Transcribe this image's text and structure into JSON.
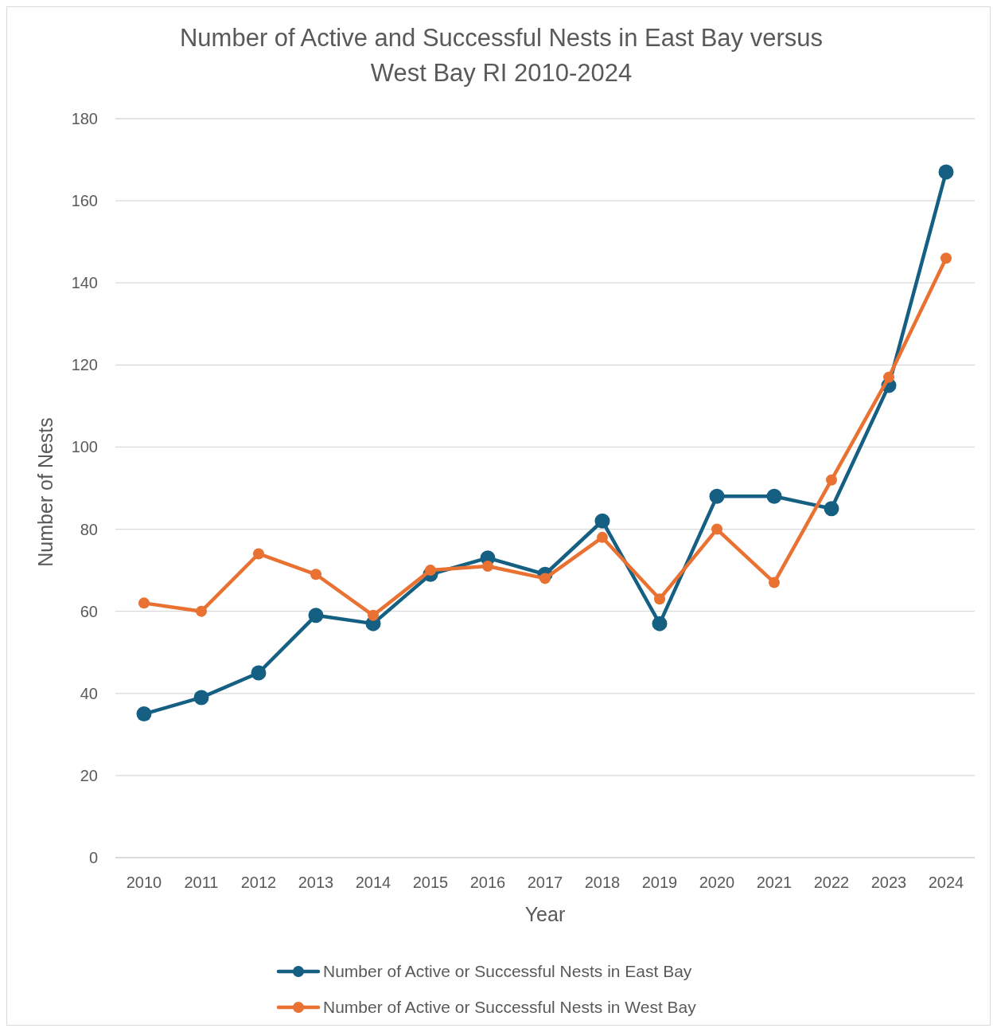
{
  "chart_data": {
    "type": "line",
    "title": "Number of Active and Successful Nests in East Bay versus West Bay RI 2010-2024",
    "xlabel": "Year",
    "ylabel": "Number  of Nests",
    "categories": [
      "2010",
      "2011",
      "2012",
      "2013",
      "2014",
      "2015",
      "2016",
      "2017",
      "2018",
      "2019",
      "2020",
      "2021",
      "2022",
      "2023",
      "2024"
    ],
    "series": [
      {
        "name": "Number of Active or Successful Nests in East Bay",
        "color": "#156082",
        "values": [
          35,
          39,
          45,
          59,
          57,
          69,
          73,
          69,
          82,
          57,
          88,
          88,
          85,
          115,
          167
        ]
      },
      {
        "name": "Number of Active or Successful Nests in West Bay",
        "color": "#e97132",
        "values": [
          62,
          60,
          74,
          69,
          59,
          70,
          71,
          68,
          78,
          63,
          80,
          67,
          92,
          117,
          146
        ]
      }
    ],
    "ylim": [
      0,
      180
    ],
    "yticks": [
      0,
      20,
      40,
      60,
      80,
      100,
      120,
      140,
      160,
      180
    ],
    "grid": "y",
    "legend": "bottom",
    "marker": "circle",
    "line_style": "solid"
  }
}
